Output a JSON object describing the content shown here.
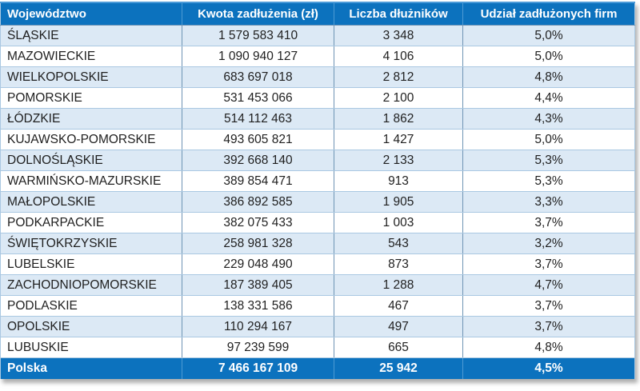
{
  "colors": {
    "header_bg": "#0C72BE",
    "header_text": "#FFFFFF",
    "row_bg": "#FFFFFF",
    "row_alt_bg": "#DCE9F5",
    "row_text": "#1F1F1F",
    "total_bg": "#0C72BE",
    "total_text": "#FFFFFF",
    "border_vertical": "#6E94B4",
    "border_horizontal": "#AAC8E2",
    "header_divider": "#4E9BD4",
    "top_border": "#4A9AD8"
  },
  "table": {
    "columns": [
      "Województwo",
      "Kwota zadłużenia (zł)",
      "Liczba dłużników",
      "Udział zadłużonych firm"
    ],
    "rows": [
      [
        "ŚLĄSKIE",
        "1 579 583 410",
        "3 348",
        "5,0%"
      ],
      [
        "MAZOWIECKIE",
        "1 090 940 127",
        "4 106",
        "5,0%"
      ],
      [
        "WIELKOPOLSKIE",
        "683 697 018",
        "2 812",
        "4,8%"
      ],
      [
        "POMORSKIE",
        "531 453 066",
        "2 100",
        "4,4%"
      ],
      [
        "ŁÓDZKIE",
        "514 112 463",
        "1 862",
        "4,3%"
      ],
      [
        "KUJAWSKO-POMORSKIE",
        "493 605 821",
        "1 427",
        "5,0%"
      ],
      [
        "DOLNOŚLĄSKIE",
        "392 668 140",
        "2 133",
        "5,3%"
      ],
      [
        "WARMIŃSKO-MAZURSKIE",
        "389 854 471",
        "913",
        "5,3%"
      ],
      [
        "MAŁOPOLSKIE",
        "386 892 585",
        "1 905",
        "3,3%"
      ],
      [
        "PODKARPACKIE",
        "382 075 433",
        "1 003",
        "3,7%"
      ],
      [
        "ŚWIĘTOKRZYSKIE",
        "258 981 328",
        "543",
        "3,2%"
      ],
      [
        "LUBELSKIE",
        "229 048 490",
        "873",
        "3,7%"
      ],
      [
        "ZACHODNIOPOMORSKIE",
        "187 389 405",
        "1 288",
        "4,7%"
      ],
      [
        "PODLASKIE",
        "138 331 586",
        "467",
        "3,7%"
      ],
      [
        "OPOLSKIE",
        "110 294 167",
        "497",
        "3,7%"
      ],
      [
        "LUBUSKIE",
        "97 239 599",
        "665",
        "4,8%"
      ]
    ],
    "total": [
      "Polska",
      "7 466 167 109",
      "25 942",
      "4,5%"
    ]
  },
  "chart_data": {
    "type": "table",
    "title": "",
    "columns": [
      "Województwo",
      "Kwota zadłużenia (zł)",
      "Liczba dłużników",
      "Udział zadłużonych firm"
    ],
    "rows": [
      {
        "wojewodztwo": "ŚLĄSKIE",
        "kwota_zadluzenia_zl": 1579583410,
        "liczba_dluznikow": 3348,
        "udzial_zadluzonych_firm_pct": 5.0
      },
      {
        "wojewodztwo": "MAZOWIECKIE",
        "kwota_zadluzenia_zl": 1090940127,
        "liczba_dluznikow": 4106,
        "udzial_zadluzonych_firm_pct": 5.0
      },
      {
        "wojewodztwo": "WIELKOPOLSKIE",
        "kwota_zadluzenia_zl": 683697018,
        "liczba_dluznikow": 2812,
        "udzial_zadluzonych_firm_pct": 4.8
      },
      {
        "wojewodztwo": "POMORSKIE",
        "kwota_zadluzenia_zl": 531453066,
        "liczba_dluznikow": 2100,
        "udzial_zadluzonych_firm_pct": 4.4
      },
      {
        "wojewodztwo": "ŁÓDZKIE",
        "kwota_zadluzenia_zl": 514112463,
        "liczba_dluznikow": 1862,
        "udzial_zadluzonych_firm_pct": 4.3
      },
      {
        "wojewodztwo": "KUJAWSKO-POMORSKIE",
        "kwota_zadluzenia_zl": 493605821,
        "liczba_dluznikow": 1427,
        "udzial_zadluzonych_firm_pct": 5.0
      },
      {
        "wojewodztwo": "DOLNOŚLĄSKIE",
        "kwota_zadluzenia_zl": 392668140,
        "liczba_dluznikow": 2133,
        "udzial_zadluzonych_firm_pct": 5.3
      },
      {
        "wojewodztwo": "WARMIŃSKO-MAZURSKIE",
        "kwota_zadluzenia_zl": 389854471,
        "liczba_dluznikow": 913,
        "udzial_zadluzonych_firm_pct": 5.3
      },
      {
        "wojewodztwo": "MAŁOPOLSKIE",
        "kwota_zadluzenia_zl": 386892585,
        "liczba_dluznikow": 1905,
        "udzial_zadluzonych_firm_pct": 3.3
      },
      {
        "wojewodztwo": "PODKARPACKIE",
        "kwota_zadluzenia_zl": 382075433,
        "liczba_dluznikow": 1003,
        "udzial_zadluzonych_firm_pct": 3.7
      },
      {
        "wojewodztwo": "ŚWIĘTOKRZYSKIE",
        "kwota_zadluzenia_zl": 258981328,
        "liczba_dluznikow": 543,
        "udzial_zadluzonych_firm_pct": 3.2
      },
      {
        "wojewodztwo": "LUBELSKIE",
        "kwota_zadluzenia_zl": 229048490,
        "liczba_dluznikow": 873,
        "udzial_zadluzonych_firm_pct": 3.7
      },
      {
        "wojewodztwo": "ZACHODNIOPOMORSKIE",
        "kwota_zadluzenia_zl": 187389405,
        "liczba_dluznikow": 1288,
        "udzial_zadluzonych_firm_pct": 4.7
      },
      {
        "wojewodztwo": "PODLASKIE",
        "kwota_zadluzenia_zl": 138331586,
        "liczba_dluznikow": 467,
        "udzial_zadluzonych_firm_pct": 3.7
      },
      {
        "wojewodztwo": "OPOLSKIE",
        "kwota_zadluzenia_zl": 110294167,
        "liczba_dluznikow": 497,
        "udzial_zadluzonych_firm_pct": 3.7
      },
      {
        "wojewodztwo": "LUBUSKIE",
        "kwota_zadluzenia_zl": 97239599,
        "liczba_dluznikow": 665,
        "udzial_zadluzonych_firm_pct": 4.8
      }
    ],
    "total_row": {
      "wojewodztwo": "Polska",
      "kwota_zadluzenia_zl": 7466167109,
      "liczba_dluznikow": 25942,
      "udzial_zadluzonych_firm_pct": 4.5
    },
    "layout_hints": {
      "zebra_striping": true,
      "first_data_row_shaded": true,
      "value_alignment": "center",
      "label_alignment": "left"
    }
  }
}
